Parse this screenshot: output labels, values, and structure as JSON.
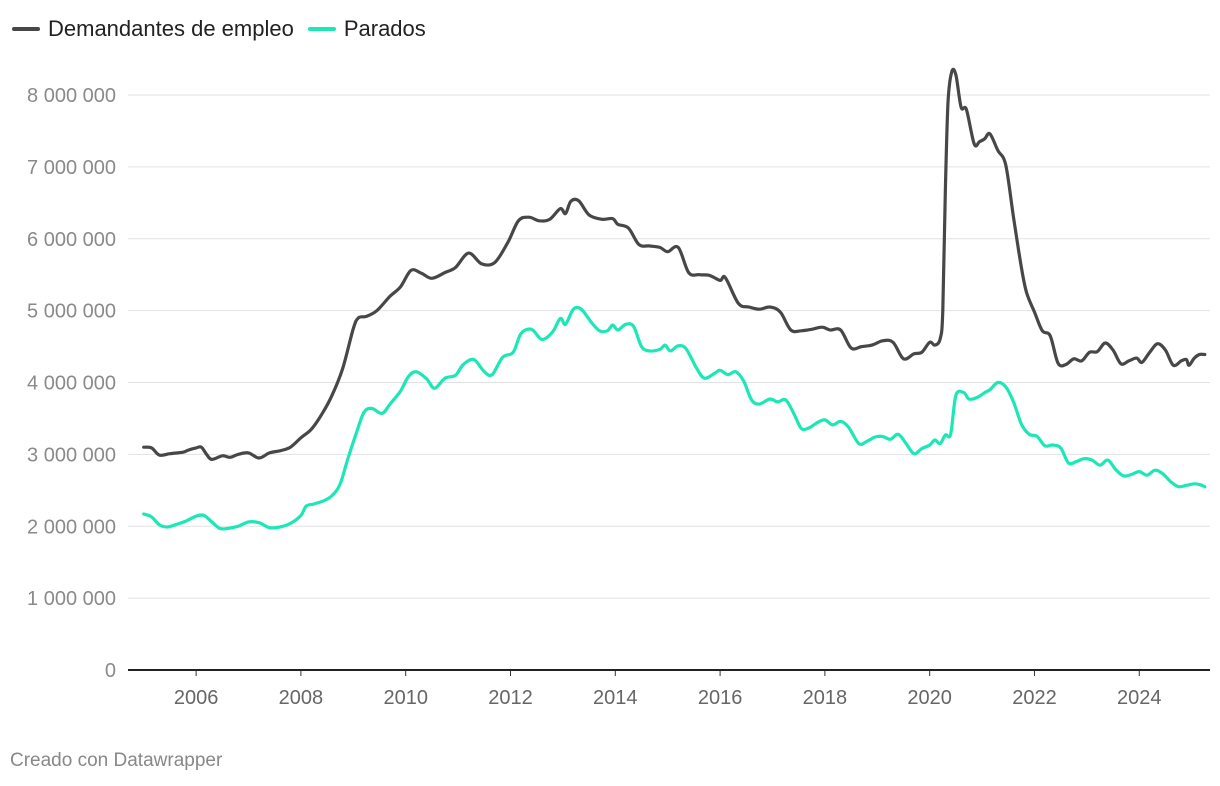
{
  "chart_data": {
    "type": "line",
    "title": "",
    "xlabel": "",
    "ylabel": "",
    "xlim": [
      2004.9,
      2025.0
    ],
    "ylim": [
      0,
      8000000
    ],
    "y_ticks": [
      {
        "value": 0,
        "label": "0"
      },
      {
        "value": 1000000,
        "label": "1 000 000"
      },
      {
        "value": 2000000,
        "label": "2 000 000"
      },
      {
        "value": 3000000,
        "label": "3 000 000"
      },
      {
        "value": 4000000,
        "label": "4 000 000"
      },
      {
        "value": 5000000,
        "label": "5 000 000"
      },
      {
        "value": 6000000,
        "label": "6 000 000"
      },
      {
        "value": 7000000,
        "label": "7 000 000"
      },
      {
        "value": 8000000,
        "label": "8 000 000"
      }
    ],
    "x_ticks": [
      {
        "value": 2006,
        "label": "2006"
      },
      {
        "value": 2008,
        "label": "2008"
      },
      {
        "value": 2010,
        "label": "2010"
      },
      {
        "value": 2012,
        "label": "2012"
      },
      {
        "value": 2014,
        "label": "2014"
      },
      {
        "value": 2016,
        "label": "2016"
      },
      {
        "value": 2018,
        "label": "2018"
      },
      {
        "value": 2020,
        "label": "2020"
      },
      {
        "value": 2022,
        "label": "2022"
      },
      {
        "value": 2024,
        "label": "2024"
      }
    ],
    "grid": true,
    "legend": "top-left",
    "series": [
      {
        "name": "Demandantes de empleo",
        "color": "#474747",
        "points": [
          [
            2005.0,
            3100000
          ],
          [
            2005.15,
            3090000
          ],
          [
            2005.3,
            2990000
          ],
          [
            2005.5,
            3010000
          ],
          [
            2005.75,
            3030000
          ],
          [
            2005.85,
            3060000
          ],
          [
            2006.0,
            3090000
          ],
          [
            2006.1,
            3100000
          ],
          [
            2006.2,
            3000000
          ],
          [
            2006.3,
            2930000
          ],
          [
            2006.5,
            2980000
          ],
          [
            2006.65,
            2960000
          ],
          [
            2006.8,
            3000000
          ],
          [
            2007.0,
            3020000
          ],
          [
            2007.2,
            2950000
          ],
          [
            2007.4,
            3020000
          ],
          [
            2007.6,
            3050000
          ],
          [
            2007.8,
            3100000
          ],
          [
            2008.0,
            3230000
          ],
          [
            2008.2,
            3350000
          ],
          [
            2008.4,
            3560000
          ],
          [
            2008.6,
            3830000
          ],
          [
            2008.8,
            4200000
          ],
          [
            2009.0,
            4750000
          ],
          [
            2009.1,
            4900000
          ],
          [
            2009.25,
            4920000
          ],
          [
            2009.45,
            5000000
          ],
          [
            2009.7,
            5200000
          ],
          [
            2009.9,
            5330000
          ],
          [
            2010.1,
            5560000
          ],
          [
            2010.3,
            5520000
          ],
          [
            2010.5,
            5450000
          ],
          [
            2010.75,
            5530000
          ],
          [
            2010.95,
            5600000
          ],
          [
            2011.2,
            5800000
          ],
          [
            2011.45,
            5650000
          ],
          [
            2011.7,
            5670000
          ],
          [
            2011.95,
            5950000
          ],
          [
            2012.15,
            6250000
          ],
          [
            2012.35,
            6300000
          ],
          [
            2012.55,
            6250000
          ],
          [
            2012.75,
            6270000
          ],
          [
            2012.95,
            6420000
          ],
          [
            2013.05,
            6350000
          ],
          [
            2013.15,
            6520000
          ],
          [
            2013.3,
            6530000
          ],
          [
            2013.5,
            6330000
          ],
          [
            2013.75,
            6270000
          ],
          [
            2013.95,
            6280000
          ],
          [
            2014.05,
            6200000
          ],
          [
            2014.25,
            6150000
          ],
          [
            2014.45,
            5920000
          ],
          [
            2014.65,
            5900000
          ],
          [
            2014.85,
            5880000
          ],
          [
            2015.0,
            5820000
          ],
          [
            2015.2,
            5880000
          ],
          [
            2015.4,
            5530000
          ],
          [
            2015.6,
            5500000
          ],
          [
            2015.8,
            5490000
          ],
          [
            2016.0,
            5420000
          ],
          [
            2016.1,
            5460000
          ],
          [
            2016.35,
            5100000
          ],
          [
            2016.55,
            5050000
          ],
          [
            2016.75,
            5020000
          ],
          [
            2016.95,
            5050000
          ],
          [
            2017.15,
            4980000
          ],
          [
            2017.35,
            4730000
          ],
          [
            2017.55,
            4720000
          ],
          [
            2017.75,
            4740000
          ],
          [
            2017.95,
            4770000
          ],
          [
            2018.1,
            4730000
          ],
          [
            2018.3,
            4730000
          ],
          [
            2018.5,
            4480000
          ],
          [
            2018.7,
            4500000
          ],
          [
            2018.9,
            4520000
          ],
          [
            2019.1,
            4580000
          ],
          [
            2019.3,
            4560000
          ],
          [
            2019.5,
            4330000
          ],
          [
            2019.7,
            4400000
          ],
          [
            2019.85,
            4420000
          ],
          [
            2020.0,
            4560000
          ],
          [
            2020.1,
            4520000
          ],
          [
            2020.2,
            4610000
          ],
          [
            2020.25,
            5000000
          ],
          [
            2020.3,
            6700000
          ],
          [
            2020.35,
            7900000
          ],
          [
            2020.42,
            8320000
          ],
          [
            2020.5,
            8280000
          ],
          [
            2020.6,
            7830000
          ],
          [
            2020.7,
            7800000
          ],
          [
            2020.85,
            7320000
          ],
          [
            2020.95,
            7350000
          ],
          [
            2021.05,
            7390000
          ],
          [
            2021.15,
            7460000
          ],
          [
            2021.3,
            7230000
          ],
          [
            2021.45,
            7030000
          ],
          [
            2021.6,
            6300000
          ],
          [
            2021.75,
            5600000
          ],
          [
            2021.85,
            5250000
          ],
          [
            2022.0,
            4980000
          ],
          [
            2022.15,
            4720000
          ],
          [
            2022.3,
            4650000
          ],
          [
            2022.45,
            4270000
          ],
          [
            2022.6,
            4250000
          ],
          [
            2022.75,
            4330000
          ],
          [
            2022.9,
            4300000
          ],
          [
            2023.05,
            4420000
          ],
          [
            2023.2,
            4430000
          ],
          [
            2023.35,
            4550000
          ],
          [
            2023.5,
            4450000
          ],
          [
            2023.65,
            4260000
          ],
          [
            2023.8,
            4300000
          ],
          [
            2023.95,
            4340000
          ],
          [
            2024.05,
            4280000
          ],
          [
            2024.2,
            4420000
          ],
          [
            2024.35,
            4540000
          ],
          [
            2024.5,
            4450000
          ],
          [
            2024.65,
            4240000
          ],
          [
            2024.8,
            4300000
          ],
          [
            2024.9,
            4320000
          ],
          [
            2024.95,
            4240000
          ],
          [
            2025.05,
            4340000
          ],
          [
            2025.15,
            4390000
          ],
          [
            2025.25,
            4390000
          ]
        ]
      },
      {
        "name": "Parados",
        "color": "#1ce7b6",
        "points": [
          [
            2005.0,
            2170000
          ],
          [
            2005.15,
            2130000
          ],
          [
            2005.3,
            2020000
          ],
          [
            2005.45,
            1990000
          ],
          [
            2005.6,
            2020000
          ],
          [
            2005.8,
            2070000
          ],
          [
            2006.0,
            2140000
          ],
          [
            2006.15,
            2150000
          ],
          [
            2006.3,
            2060000
          ],
          [
            2006.45,
            1970000
          ],
          [
            2006.6,
            1970000
          ],
          [
            2006.8,
            2000000
          ],
          [
            2007.0,
            2060000
          ],
          [
            2007.2,
            2050000
          ],
          [
            2007.4,
            1980000
          ],
          [
            2007.6,
            1990000
          ],
          [
            2007.8,
            2040000
          ],
          [
            2008.0,
            2150000
          ],
          [
            2008.1,
            2280000
          ],
          [
            2008.25,
            2310000
          ],
          [
            2008.45,
            2360000
          ],
          [
            2008.6,
            2430000
          ],
          [
            2008.75,
            2590000
          ],
          [
            2008.9,
            2950000
          ],
          [
            2009.05,
            3280000
          ],
          [
            2009.2,
            3580000
          ],
          [
            2009.35,
            3640000
          ],
          [
            2009.55,
            3570000
          ],
          [
            2009.7,
            3700000
          ],
          [
            2009.9,
            3880000
          ],
          [
            2010.05,
            4080000
          ],
          [
            2010.2,
            4150000
          ],
          [
            2010.4,
            4050000
          ],
          [
            2010.55,
            3920000
          ],
          [
            2010.75,
            4060000
          ],
          [
            2010.95,
            4100000
          ],
          [
            2011.1,
            4250000
          ],
          [
            2011.3,
            4320000
          ],
          [
            2011.5,
            4150000
          ],
          [
            2011.65,
            4110000
          ],
          [
            2011.85,
            4350000
          ],
          [
            2012.05,
            4420000
          ],
          [
            2012.2,
            4680000
          ],
          [
            2012.4,
            4740000
          ],
          [
            2012.6,
            4600000
          ],
          [
            2012.8,
            4700000
          ],
          [
            2012.95,
            4890000
          ],
          [
            2013.05,
            4810000
          ],
          [
            2013.2,
            5020000
          ],
          [
            2013.35,
            5020000
          ],
          [
            2013.55,
            4830000
          ],
          [
            2013.7,
            4720000
          ],
          [
            2013.85,
            4720000
          ],
          [
            2013.95,
            4800000
          ],
          [
            2014.05,
            4730000
          ],
          [
            2014.2,
            4810000
          ],
          [
            2014.35,
            4780000
          ],
          [
            2014.5,
            4500000
          ],
          [
            2014.65,
            4440000
          ],
          [
            2014.85,
            4460000
          ],
          [
            2014.95,
            4520000
          ],
          [
            2015.05,
            4440000
          ],
          [
            2015.2,
            4510000
          ],
          [
            2015.35,
            4470000
          ],
          [
            2015.55,
            4200000
          ],
          [
            2015.7,
            4060000
          ],
          [
            2015.9,
            4130000
          ],
          [
            2016.0,
            4170000
          ],
          [
            2016.15,
            4110000
          ],
          [
            2016.3,
            4150000
          ],
          [
            2016.45,
            4020000
          ],
          [
            2016.6,
            3760000
          ],
          [
            2016.75,
            3700000
          ],
          [
            2016.95,
            3770000
          ],
          [
            2017.1,
            3730000
          ],
          [
            2017.25,
            3760000
          ],
          [
            2017.4,
            3580000
          ],
          [
            2017.55,
            3360000
          ],
          [
            2017.7,
            3370000
          ],
          [
            2017.85,
            3440000
          ],
          [
            2018.0,
            3480000
          ],
          [
            2018.15,
            3410000
          ],
          [
            2018.3,
            3460000
          ],
          [
            2018.45,
            3380000
          ],
          [
            2018.65,
            3150000
          ],
          [
            2018.8,
            3180000
          ],
          [
            2018.95,
            3240000
          ],
          [
            2019.1,
            3250000
          ],
          [
            2019.25,
            3210000
          ],
          [
            2019.4,
            3280000
          ],
          [
            2019.55,
            3150000
          ],
          [
            2019.7,
            3010000
          ],
          [
            2019.85,
            3080000
          ],
          [
            2020.0,
            3130000
          ],
          [
            2020.1,
            3200000
          ],
          [
            2020.2,
            3150000
          ],
          [
            2020.3,
            3270000
          ],
          [
            2020.4,
            3280000
          ],
          [
            2020.5,
            3820000
          ],
          [
            2020.65,
            3860000
          ],
          [
            2020.75,
            3770000
          ],
          [
            2020.9,
            3790000
          ],
          [
            2021.05,
            3860000
          ],
          [
            2021.15,
            3900000
          ],
          [
            2021.3,
            4000000
          ],
          [
            2021.45,
            3940000
          ],
          [
            2021.6,
            3730000
          ],
          [
            2021.75,
            3420000
          ],
          [
            2021.9,
            3280000
          ],
          [
            2022.05,
            3250000
          ],
          [
            2022.2,
            3120000
          ],
          [
            2022.35,
            3130000
          ],
          [
            2022.5,
            3090000
          ],
          [
            2022.65,
            2880000
          ],
          [
            2022.8,
            2900000
          ],
          [
            2022.95,
            2940000
          ],
          [
            2023.1,
            2920000
          ],
          [
            2023.25,
            2850000
          ],
          [
            2023.4,
            2920000
          ],
          [
            2023.55,
            2790000
          ],
          [
            2023.7,
            2700000
          ],
          [
            2023.85,
            2720000
          ],
          [
            2024.0,
            2760000
          ],
          [
            2024.15,
            2710000
          ],
          [
            2024.3,
            2780000
          ],
          [
            2024.45,
            2730000
          ],
          [
            2024.6,
            2620000
          ],
          [
            2024.75,
            2550000
          ],
          [
            2024.9,
            2570000
          ],
          [
            2025.05,
            2590000
          ],
          [
            2025.15,
            2580000
          ],
          [
            2025.25,
            2550000
          ]
        ]
      }
    ]
  },
  "credit": "Creado con Datawrapper"
}
